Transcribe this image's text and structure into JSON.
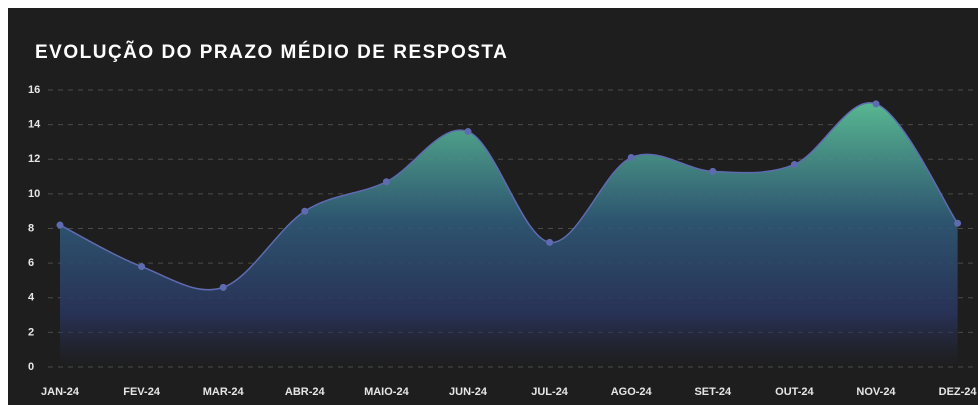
{
  "chart_data": {
    "type": "area",
    "title": "EVOLUÇÃO DO PRAZO MÉDIO DE RESPOSTA",
    "categories": [
      "JAN-24",
      "FEV-24",
      "MAR-24",
      "ABR-24",
      "MAIO-24",
      "JUN-24",
      "JUL-24",
      "AGO-24",
      "SET-24",
      "OUT-24",
      "NOV-24",
      "DEZ-24"
    ],
    "values": [
      8.2,
      5.8,
      4.6,
      9.0,
      10.7,
      13.6,
      7.2,
      12.1,
      11.3,
      11.7,
      15.2,
      8.3
    ],
    "color": "#5f6bb0",
    "ylim": [
      0,
      16
    ],
    "yticks": [
      0,
      2,
      4,
      6,
      8,
      10,
      12,
      14,
      16
    ],
    "grid": true
  }
}
